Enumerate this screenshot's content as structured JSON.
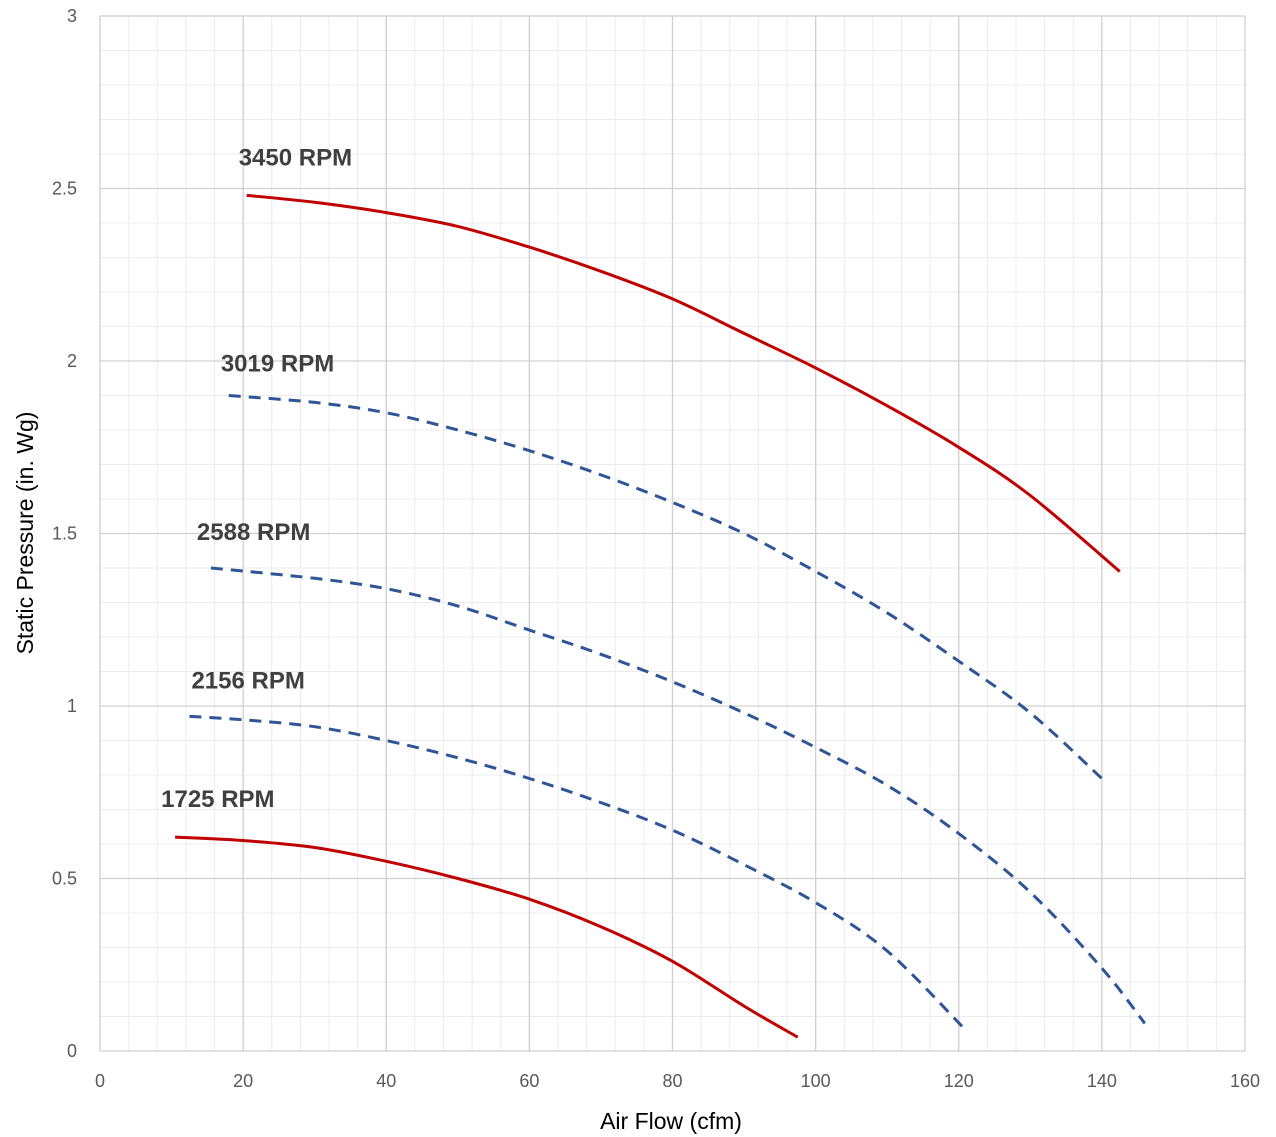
{
  "chart_data": {
    "type": "line",
    "title": "",
    "xlabel": "Air Flow (cfm)",
    "ylabel": "Static Pressure (in. Wg)",
    "xlim": [
      0,
      160
    ],
    "ylim": [
      0,
      3
    ],
    "x_ticks": [
      0,
      20,
      40,
      60,
      80,
      100,
      120,
      140,
      160
    ],
    "x_tick_labels": [
      "0",
      "20",
      "40",
      "60",
      "80",
      "100",
      "120",
      "140",
      "160"
    ],
    "y_ticks": [
      0,
      0.5,
      1,
      1.5,
      2,
      2.5,
      3
    ],
    "y_tick_labels": [
      "0",
      "0.5",
      "1",
      "1.5",
      "2",
      "2.5",
      "3"
    ],
    "grid": {
      "major": true,
      "minor": true
    },
    "legend": "none",
    "series": [
      {
        "name": "3450 RPM",
        "color": "#C00000",
        "dashed": false,
        "x": [
          20.5,
          30,
          40,
          50,
          60,
          70,
          80,
          90,
          100,
          110,
          120,
          130,
          142.5
        ],
        "y": [
          2.48,
          2.46,
          2.43,
          2.39,
          2.33,
          2.26,
          2.18,
          2.08,
          1.98,
          1.87,
          1.75,
          1.61,
          1.39
        ]
      },
      {
        "name": "3019 RPM",
        "color": "#2F5597",
        "dashed": true,
        "x": [
          18,
          30,
          40,
          50,
          60,
          70,
          80,
          90,
          100,
          110,
          120,
          130,
          140
        ],
        "y": [
          1.9,
          1.88,
          1.85,
          1.8,
          1.74,
          1.67,
          1.59,
          1.5,
          1.39,
          1.27,
          1.13,
          0.98,
          0.79
        ]
      },
      {
        "name": "2588 RPM",
        "color": "#2F5597",
        "dashed": true,
        "x": [
          15.5,
          30,
          40,
          50,
          60,
          70,
          80,
          90,
          100,
          110,
          120,
          130,
          140,
          146
        ],
        "y": [
          1.4,
          1.37,
          1.34,
          1.29,
          1.22,
          1.15,
          1.07,
          0.98,
          0.88,
          0.77,
          0.63,
          0.46,
          0.24,
          0.08
        ]
      },
      {
        "name": "2156 RPM",
        "color": "#2F5597",
        "dashed": true,
        "x": [
          12.5,
          20,
          30,
          40,
          50,
          60,
          70,
          80,
          90,
          100,
          110,
          121
        ],
        "y": [
          0.97,
          0.96,
          0.94,
          0.9,
          0.85,
          0.79,
          0.72,
          0.64,
          0.54,
          0.43,
          0.29,
          0.06
        ]
      },
      {
        "name": "1725 RPM",
        "color": "#C00000",
        "dashed": false,
        "x": [
          10.5,
          20,
          30,
          40,
          50,
          60,
          70,
          80,
          90,
          97.5
        ],
        "y": [
          0.62,
          0.61,
          0.59,
          0.55,
          0.5,
          0.44,
          0.36,
          0.26,
          0.13,
          0.04
        ]
      }
    ]
  }
}
